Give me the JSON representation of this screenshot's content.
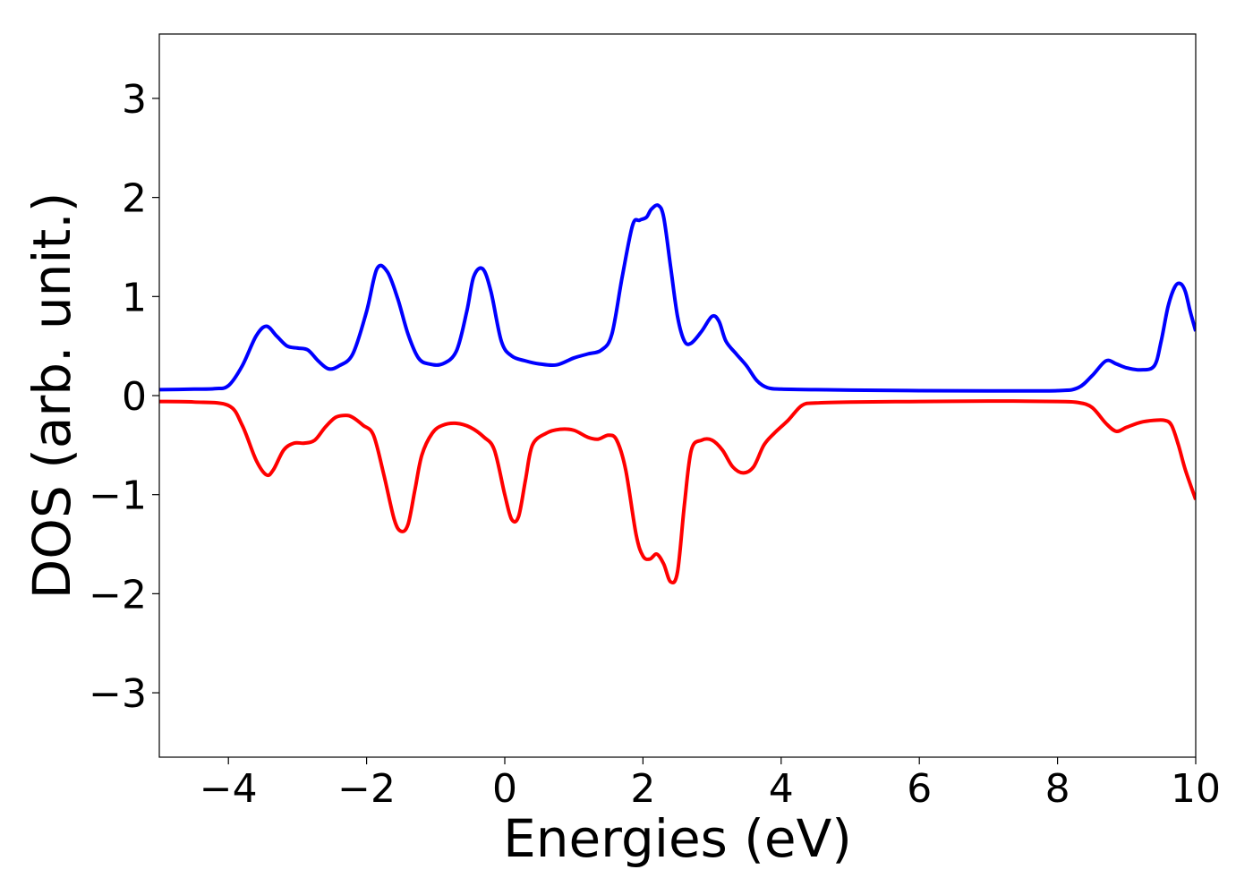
{
  "chart_data": {
    "type": "line",
    "title": "",
    "xlabel": "Energies (eV)",
    "ylabel": "DOS (arb. unit.)",
    "xlim": [
      -5,
      10
    ],
    "ylim": [
      -3.65,
      3.65
    ],
    "grid": false,
    "legend": "none",
    "xticks": [
      -4,
      -2,
      0,
      2,
      4,
      6,
      8,
      10
    ],
    "xtick_labels": [
      "−4",
      "−2",
      "0",
      "2",
      "4",
      "6",
      "8",
      "10"
    ],
    "yticks": [
      -3,
      -2,
      -1,
      0,
      1,
      2,
      3
    ],
    "ytick_labels": [
      "−3",
      "−2",
      "−1",
      "0",
      "1",
      "2",
      "3"
    ],
    "series": [
      {
        "color": "#0000ff",
        "x": [
          -5.0,
          -4.5,
          -4.2,
          -4.0,
          -3.8,
          -3.6,
          -3.45,
          -3.3,
          -3.15,
          -3.0,
          -2.85,
          -2.7,
          -2.55,
          -2.4,
          -2.2,
          -2.0,
          -1.85,
          -1.7,
          -1.55,
          -1.4,
          -1.25,
          -1.1,
          -0.9,
          -0.7,
          -0.55,
          -0.45,
          -0.32,
          -0.2,
          -0.05,
          0.1,
          0.3,
          0.5,
          0.75,
          1.0,
          1.2,
          1.4,
          1.55,
          1.7,
          1.85,
          1.95,
          2.05,
          2.12,
          2.22,
          2.3,
          2.4,
          2.5,
          2.6,
          2.7,
          2.85,
          3.0,
          3.1,
          3.2,
          3.35,
          3.5,
          3.65,
          3.8,
          4.0,
          4.5,
          5.0,
          6.0,
          7.0,
          8.0,
          8.3,
          8.5,
          8.7,
          8.85,
          9.0,
          9.2,
          9.4,
          9.5,
          9.6,
          9.7,
          9.78,
          9.85,
          9.92,
          10.0
        ],
        "y": [
          0.06,
          0.065,
          0.07,
          0.1,
          0.3,
          0.6,
          0.7,
          0.6,
          0.5,
          0.48,
          0.46,
          0.35,
          0.27,
          0.3,
          0.42,
          0.85,
          1.28,
          1.25,
          0.98,
          0.62,
          0.38,
          0.32,
          0.32,
          0.45,
          0.85,
          1.2,
          1.28,
          1.05,
          0.55,
          0.4,
          0.35,
          0.32,
          0.31,
          0.38,
          0.42,
          0.46,
          0.62,
          1.2,
          1.72,
          1.77,
          1.8,
          1.88,
          1.92,
          1.8,
          1.3,
          0.8,
          0.55,
          0.53,
          0.65,
          0.8,
          0.75,
          0.55,
          0.42,
          0.3,
          0.15,
          0.08,
          0.065,
          0.06,
          0.055,
          0.05,
          0.048,
          0.05,
          0.08,
          0.2,
          0.35,
          0.32,
          0.28,
          0.26,
          0.3,
          0.55,
          0.9,
          1.1,
          1.13,
          1.05,
          0.85,
          0.65
        ]
      },
      {
        "color": "#ff0000",
        "x": [
          -5.0,
          -4.5,
          -4.0,
          -3.8,
          -3.6,
          -3.45,
          -3.35,
          -3.2,
          -3.05,
          -2.9,
          -2.75,
          -2.6,
          -2.45,
          -2.3,
          -2.2,
          -2.05,
          -1.9,
          -1.75,
          -1.6,
          -1.5,
          -1.4,
          -1.3,
          -1.2,
          -1.05,
          -0.9,
          -0.7,
          -0.5,
          -0.3,
          -0.15,
          0.0,
          0.1,
          0.2,
          0.3,
          0.4,
          0.6,
          0.8,
          1.0,
          1.2,
          1.35,
          1.5,
          1.62,
          1.75,
          1.9,
          2.0,
          2.1,
          2.2,
          2.3,
          2.4,
          2.5,
          2.6,
          2.7,
          2.85,
          3.0,
          3.15,
          3.3,
          3.45,
          3.6,
          3.75,
          3.9,
          4.1,
          4.3,
          4.5,
          5.0,
          6.0,
          7.0,
          8.0,
          8.3,
          8.5,
          8.7,
          8.85,
          9.0,
          9.2,
          9.4,
          9.55,
          9.65,
          9.75,
          9.85,
          10.0
        ],
        "y": [
          -0.06,
          -0.065,
          -0.1,
          -0.3,
          -0.65,
          -0.8,
          -0.75,
          -0.55,
          -0.48,
          -0.48,
          -0.45,
          -0.32,
          -0.22,
          -0.2,
          -0.22,
          -0.3,
          -0.4,
          -0.8,
          -1.25,
          -1.37,
          -1.3,
          -0.95,
          -0.6,
          -0.38,
          -0.3,
          -0.28,
          -0.32,
          -0.42,
          -0.55,
          -1.0,
          -1.25,
          -1.22,
          -0.85,
          -0.5,
          -0.38,
          -0.34,
          -0.35,
          -0.42,
          -0.44,
          -0.4,
          -0.45,
          -0.75,
          -1.4,
          -1.62,
          -1.65,
          -1.6,
          -1.7,
          -1.88,
          -1.78,
          -1.1,
          -0.55,
          -0.45,
          -0.45,
          -0.55,
          -0.72,
          -0.78,
          -0.72,
          -0.5,
          -0.38,
          -0.25,
          -0.1,
          -0.075,
          -0.065,
          -0.06,
          -0.055,
          -0.06,
          -0.07,
          -0.12,
          -0.28,
          -0.36,
          -0.32,
          -0.27,
          -0.25,
          -0.25,
          -0.3,
          -0.5,
          -0.75,
          -1.05
        ]
      }
    ]
  }
}
